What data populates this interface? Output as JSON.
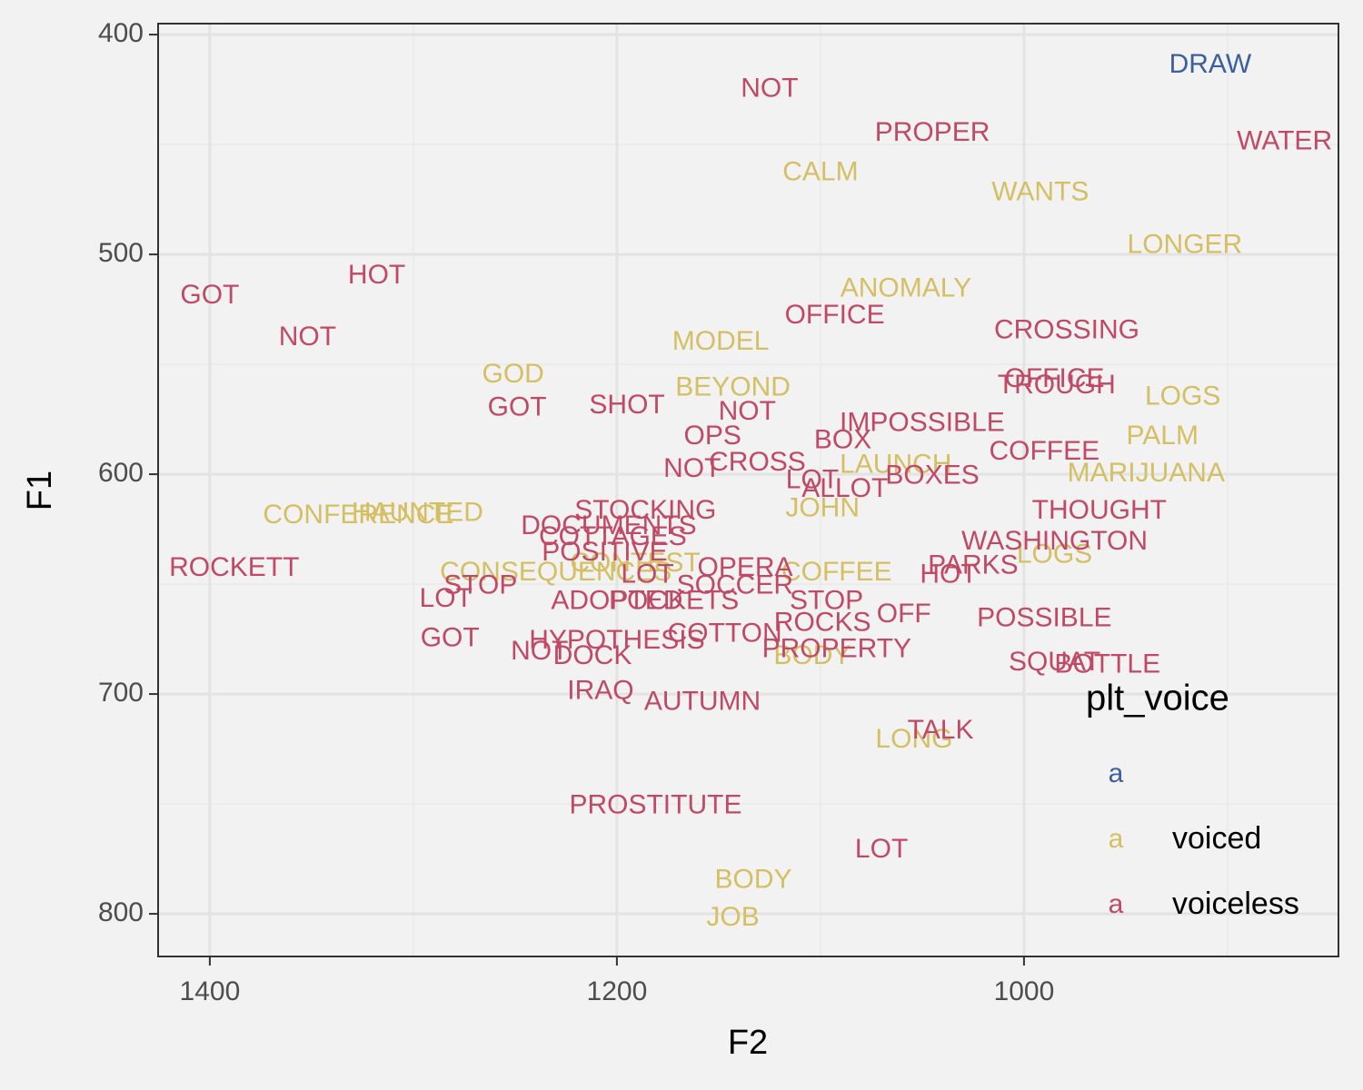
{
  "chart_data": {
    "type": "text-scatter",
    "x_label": "F2",
    "y_label": "F1",
    "xlim": [
      1425.4,
      845.5
    ],
    "ylim": [
      819.4,
      395
    ],
    "xticks": [
      1400,
      1200,
      1000
    ],
    "yticks": [
      400,
      500,
      600,
      700,
      800
    ],
    "x_minor_ticks": [
      1300,
      1100,
      900
    ],
    "y_minor_ticks": [
      450,
      550,
      650,
      750
    ],
    "grid": true,
    "legend_title": "plt_voice",
    "legend_key": "a",
    "legend_position": "right-bottom",
    "series": [
      {
        "color": "#3d5f9c",
        "labels": [
          "DRAW"
        ],
        "x": [
          908.5
        ],
        "y": [
          414
        ]
      },
      {
        "name": "voiced",
        "color": "#d4bf63",
        "labels": [
          "CALM",
          "WANTS",
          "LONGER",
          "ANOMALY",
          "MODEL",
          "GOD",
          "BEYOND",
          "LOGS",
          "PALM",
          "MARIJUANA",
          "LAUNCH",
          "CONFERENCE",
          "HAUNTED",
          "CONSEQUENCES",
          "CONTEST",
          "LOGS",
          "BODY",
          "LONG",
          "BODY",
          "JOB",
          "JOHN",
          "COFFEE"
        ],
        "x": [
          1100,
          992,
          921,
          1058,
          1149,
          1251,
          1143,
          922,
          932,
          940,
          1063,
          1327,
          1298,
          1230,
          1191,
          985,
          1104,
          1054,
          1133,
          1143,
          1099,
          1092
        ],
        "y": [
          463,
          472,
          496,
          516,
          540,
          555,
          561,
          565,
          583,
          600,
          596,
          619,
          618,
          645,
          641,
          637,
          683,
          721,
          785,
          802,
          616,
          645
        ]
      },
      {
        "name": "voiceless",
        "color": "#c04a66",
        "labels": [
          "NOT",
          "PROPER",
          "WATER",
          "HOT",
          "GOT",
          "NOT",
          "OFFICE",
          "CROSSING",
          "OFFICE",
          "TROUGH",
          "GOT",
          "SHOT",
          "NOT",
          "OPS",
          "CROSS",
          "NOT",
          "STOCKING",
          "DOCUMENTS",
          "ROCKETT",
          "STOP",
          "LOT",
          "GOT",
          "ADOPTED",
          "POCKETS",
          "HYPOTHESIS",
          "NOT",
          "DOCK",
          "IRAQ",
          "AUTUMN",
          "COTTON",
          "PROSTITUTE",
          "ROCKS",
          "PROPERTY",
          "OFF",
          "POSSIBLE",
          "SQUAT",
          "BOTTLE",
          "TALK",
          "LOT",
          "HOT",
          "PARKS",
          "THOUGHT",
          "WASHINGTON",
          "BOXES",
          "LOT",
          "ALLOT",
          "BOX",
          "IMPOSSIBLE",
          "COFFEE",
          "OPERA",
          "SOCCER",
          "STOP",
          "LOT",
          "COTTAGES",
          "POSITIVE"
        ],
        "x": [
          1125,
          1045,
          872,
          1318,
          1400,
          1352,
          1093,
          979,
          985,
          984,
          1249,
          1195,
          1136,
          1153,
          1131,
          1163,
          1186,
          1204,
          1388,
          1267,
          1284,
          1282,
          1200,
          1172,
          1200,
          1238,
          1212,
          1208,
          1158,
          1147,
          1181,
          1099,
          1092,
          1059,
          990,
          985,
          959,
          1041,
          1070,
          1037,
          1025,
          963,
          985,
          1045,
          1104,
          1088,
          1089,
          1050,
          990,
          1137,
          1142,
          1097,
          1185,
          1202,
          1206
        ],
        "y": [
          425,
          445,
          449,
          510,
          519,
          538,
          528,
          535,
          557,
          560,
          570,
          569,
          572,
          583,
          595,
          598,
          617,
          624,
          643,
          651,
          657,
          675,
          658,
          658,
          676,
          681,
          683,
          699,
          704,
          673,
          751,
          668,
          680,
          664,
          666,
          686,
          687,
          717,
          771,
          646,
          642,
          617,
          631,
          601,
          603,
          607,
          585,
          577,
          590,
          643,
          651,
          658,
          646,
          629,
          636
        ]
      }
    ]
  }
}
